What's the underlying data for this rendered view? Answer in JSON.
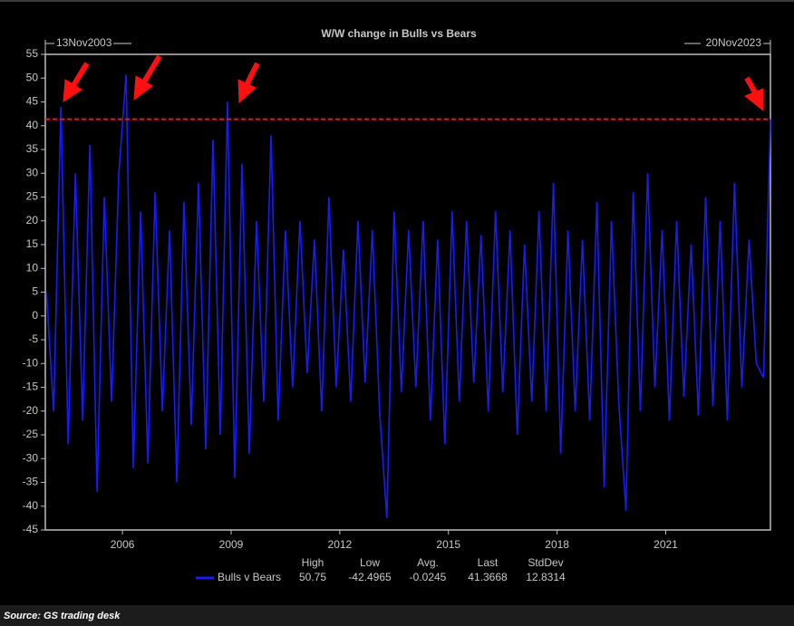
{
  "chart_data": {
    "type": "line",
    "title": "W/W change in Bulls vs Bears",
    "start_label": "13Nov2003",
    "end_label": "20Nov2023",
    "x": [
      2003.9,
      2004.1,
      2004.3,
      2004.5,
      2004.7,
      2004.9,
      2005.1,
      2005.3,
      2005.5,
      2005.7,
      2005.9,
      2006.1,
      2006.3,
      2006.5,
      2006.7,
      2006.9,
      2007.1,
      2007.3,
      2007.5,
      2007.7,
      2007.9,
      2008.1,
      2008.3,
      2008.5,
      2008.7,
      2008.9,
      2009.1,
      2009.3,
      2009.5,
      2009.7,
      2009.9,
      2010.1,
      2010.3,
      2010.5,
      2010.7,
      2010.9,
      2011.1,
      2011.3,
      2011.5,
      2011.7,
      2011.9,
      2012.1,
      2012.3,
      2012.5,
      2012.7,
      2012.9,
      2013.1,
      2013.3,
      2013.5,
      2013.7,
      2013.9,
      2014.1,
      2014.3,
      2014.5,
      2014.7,
      2014.9,
      2015.1,
      2015.3,
      2015.5,
      2015.7,
      2015.9,
      2016.1,
      2016.3,
      2016.5,
      2016.7,
      2016.9,
      2017.1,
      2017.3,
      2017.5,
      2017.7,
      2017.9,
      2018.1,
      2018.3,
      2018.5,
      2018.7,
      2018.9,
      2019.1,
      2019.3,
      2019.5,
      2019.7,
      2019.9,
      2020.1,
      2020.3,
      2020.5,
      2020.7,
      2020.9,
      2021.1,
      2021.3,
      2021.5,
      2021.7,
      2021.9,
      2022.1,
      2022.3,
      2022.5,
      2022.7,
      2022.9,
      2023.1,
      2023.3,
      2023.5,
      2023.7,
      2023.89
    ],
    "series": [
      {
        "name": "Bulls v Bears",
        "color": "#1a1aff",
        "values": [
          5,
          -20,
          44,
          -27,
          30,
          -22,
          36,
          -37,
          25,
          -18,
          30,
          50.75,
          -32,
          22,
          -31,
          26,
          -20,
          18,
          -35,
          24,
          -23,
          28,
          -28,
          37,
          -25,
          45,
          -34,
          32,
          -29,
          20,
          -18,
          38,
          -22,
          18,
          -15,
          20,
          -12,
          16,
          -20,
          25,
          -15,
          14,
          -18,
          20,
          -14,
          18,
          -20,
          -42.4965,
          22,
          -16,
          18,
          -15,
          20,
          -22,
          16,
          -27,
          22,
          -18,
          20,
          -14,
          17,
          -20,
          22,
          -16,
          18,
          -25,
          15,
          -18,
          22,
          -20,
          28,
          -29,
          18,
          -20,
          16,
          -22,
          24,
          -36,
          20,
          -18,
          -41,
          26,
          -20,
          30,
          -15,
          18,
          -22,
          20,
          -17,
          15,
          -21,
          25,
          -19,
          20,
          -22,
          28,
          -15,
          16,
          -10,
          -13,
          41.3668
        ]
      }
    ],
    "xlim": [
      2003.87,
      2023.89
    ],
    "xticks": [
      2006,
      2009,
      2012,
      2015,
      2018,
      2021
    ],
    "ylim": [
      -45,
      55
    ],
    "yticks": [
      -45,
      -40,
      -35,
      -30,
      -25,
      -20,
      -15,
      -10,
      -5,
      0,
      5,
      10,
      15,
      20,
      25,
      30,
      35,
      40,
      45,
      50,
      55
    ],
    "reference_line": {
      "value": 41.3668,
      "color": "#d0202a"
    },
    "stats": {
      "headers": [
        "High",
        "Low",
        "Avg.",
        "Last",
        "StdDev"
      ],
      "values": [
        50.75,
        -42.4965,
        -0.0245,
        41.3668,
        12.8314
      ]
    }
  },
  "source": "Source: GS trading desk"
}
